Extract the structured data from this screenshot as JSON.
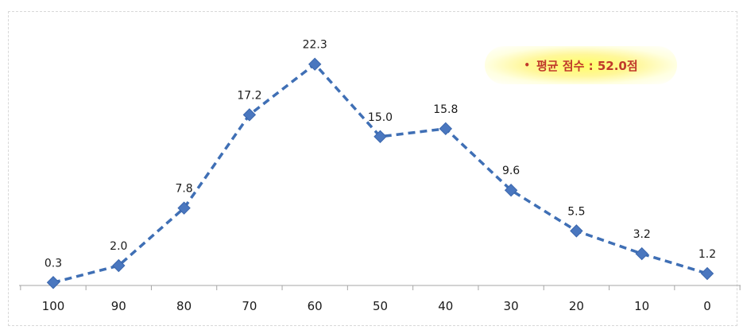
{
  "badge": {
    "bullet": "•",
    "text": "평균 점수 : 52.0점"
  },
  "colors": {
    "series": "#3f6fb5",
    "marker": "#4a77bf",
    "axis": "#a6a6a6",
    "label": "#1a1a1a",
    "badge_text": "#c0392b"
  },
  "chart_data": {
    "type": "line",
    "categories": [
      "100",
      "90",
      "80",
      "70",
      "60",
      "50",
      "40",
      "30",
      "20",
      "10",
      "0"
    ],
    "values": [
      0.3,
      2.0,
      7.8,
      17.2,
      22.3,
      15.0,
      15.8,
      9.6,
      5.5,
      3.2,
      1.2
    ],
    "value_labels": [
      "0.3",
      "2.0",
      "7.8",
      "17.2",
      "22.3",
      "15.0",
      "15.8",
      "9.6",
      "5.5",
      "3.2",
      "1.2"
    ],
    "ylim": [
      0,
      25
    ],
    "line_style": "dashed",
    "marker": "diamond",
    "grid": false,
    "title": "",
    "xlabel": "",
    "ylabel": ""
  }
}
